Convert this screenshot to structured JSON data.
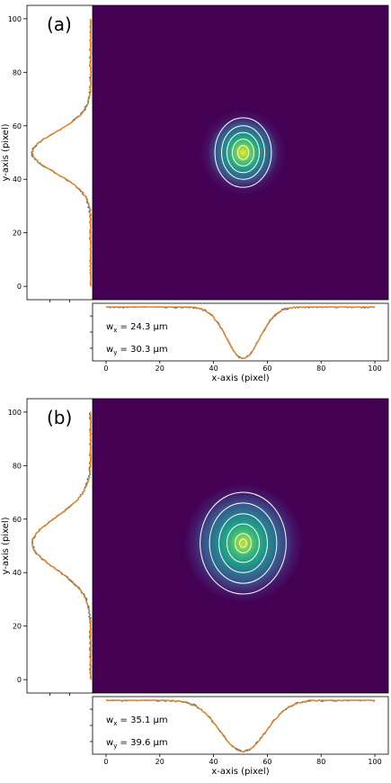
{
  "chart_data": [
    {
      "type": "heatmap",
      "panel_label": "(a)",
      "xlabel": "x-axis (pixel)",
      "ylabel": "y-axis (pixel)",
      "xlim": [
        -5,
        105
      ],
      "ylim": [
        -5,
        105
      ],
      "x_ticks": [
        0,
        20,
        40,
        60,
        80,
        100
      ],
      "y_ticks": [
        0,
        20,
        40,
        60,
        80,
        100
      ],
      "colormap": "viridis",
      "beam_center": [
        51,
        50
      ],
      "annotation_wx": "w",
      "annotation_wx_sub": "x",
      "annotation_wx_value": " = 24.3 μm",
      "annotation_wy": "w",
      "annotation_wy_sub": "y",
      "annotation_wy_value": " = 30.3 μm",
      "wx_um": 24.3,
      "wy_um": 30.3,
      "contour_radii_px": [
        [
          10.5,
          13
        ],
        [
          8,
          10
        ],
        [
          6,
          7.5
        ],
        [
          4,
          5
        ],
        [
          2,
          2.6
        ]
      ],
      "x_profile": {
        "center": 51,
        "sigma": 6.2,
        "baseline": 1.0,
        "depth": 1.0
      },
      "y_profile": {
        "center": 50,
        "sigma": 7.6,
        "baseline": 1.0,
        "depth": 1.0
      },
      "series_colors": [
        "#1f77b4",
        "#ff7f0e"
      ]
    },
    {
      "type": "heatmap",
      "panel_label": "(b)",
      "xlabel": "x-axis (pixel)",
      "ylabel": "y-axis (pixel)",
      "xlim": [
        -5,
        105
      ],
      "ylim": [
        -5,
        105
      ],
      "x_ticks": [
        0,
        20,
        40,
        60,
        80,
        100
      ],
      "y_ticks": [
        0,
        20,
        40,
        60,
        80,
        100
      ],
      "colormap": "viridis",
      "beam_center": [
        51,
        51
      ],
      "annotation_wx": "w",
      "annotation_wx_sub": "x",
      "annotation_wx_value": " = 35.1 μm",
      "annotation_wy": "w",
      "annotation_wy_sub": "y",
      "annotation_wy_value": " = 39.6 μm",
      "wx_um": 35.1,
      "wy_um": 39.6,
      "contour_radii_px": [
        [
          16,
          19
        ],
        [
          12.5,
          15
        ],
        [
          9,
          11
        ],
        [
          6,
          7.2
        ],
        [
          3,
          3.6
        ],
        [
          1.3,
          1.6
        ]
      ],
      "x_profile": {
        "center": 51,
        "sigma": 8.5,
        "baseline": 1.0,
        "depth": 1.0
      },
      "y_profile": {
        "center": 51,
        "sigma": 9.5,
        "baseline": 1.0,
        "depth": 1.0
      },
      "series_colors": [
        "#1f77b4",
        "#ff7f0e"
      ]
    }
  ]
}
